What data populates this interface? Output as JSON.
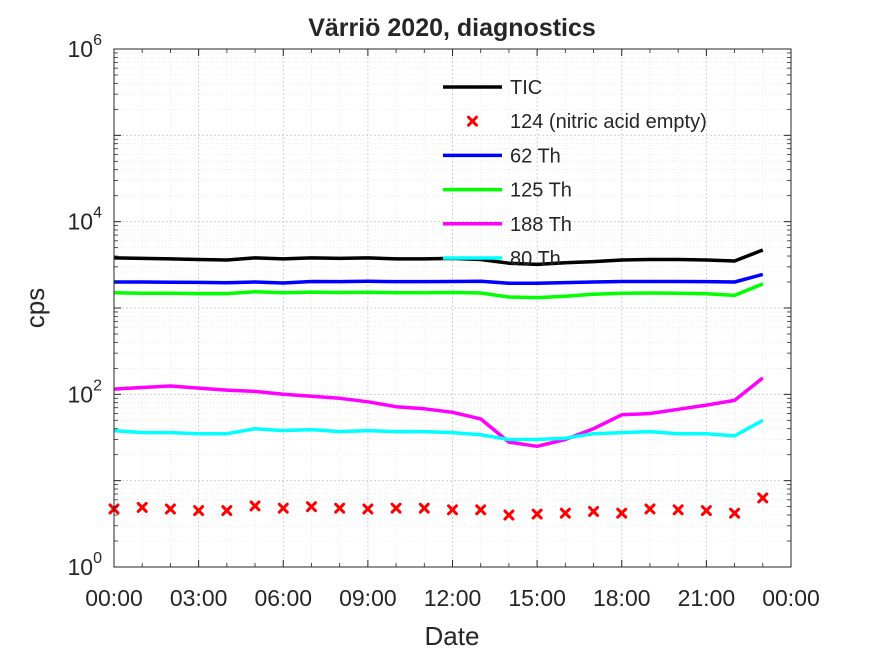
{
  "chart_data": {
    "type": "line",
    "title": "Värriö 2020, diagnostics",
    "xlabel": "Date",
    "ylabel": "cps",
    "yscale": "log",
    "ylim": [
      1,
      1000000
    ],
    "yticks": [
      {
        "value": 1,
        "base": "10",
        "exp": "0"
      },
      {
        "value": 100,
        "base": "10",
        "exp": "2"
      },
      {
        "value": 10000,
        "base": "10",
        "exp": "4"
      },
      {
        "value": 1000000,
        "base": "10",
        "exp": "6"
      }
    ],
    "xlim": [
      0,
      24
    ],
    "xticks": [
      {
        "value": 0,
        "label": "00:00"
      },
      {
        "value": 3,
        "label": "03:00"
      },
      {
        "value": 6,
        "label": "06:00"
      },
      {
        "value": 9,
        "label": "09:00"
      },
      {
        "value": 12,
        "label": "12:00"
      },
      {
        "value": 15,
        "label": "15:00"
      },
      {
        "value": 18,
        "label": "18:00"
      },
      {
        "value": 21,
        "label": "21:00"
      },
      {
        "value": 24,
        "label": "00:00"
      }
    ],
    "grid": true,
    "legend_position": "top-right",
    "x": [
      0,
      1,
      2,
      3,
      4,
      5,
      6,
      7,
      8,
      9,
      10,
      11,
      12,
      13,
      14,
      15,
      16,
      17,
      18,
      19,
      20,
      21,
      22,
      23
    ],
    "series": [
      {
        "name": "TIC",
        "style": "line",
        "color": "#000000",
        "values": [
          3800,
          3750,
          3700,
          3650,
          3600,
          3800,
          3700,
          3800,
          3750,
          3800,
          3700,
          3700,
          3750,
          3650,
          3300,
          3200,
          3350,
          3450,
          3600,
          3650,
          3650,
          3600,
          3500,
          4700
        ]
      },
      {
        "name": "124 (nitric acid empty)",
        "style": "marker",
        "color": "#ff0000",
        "values": [
          4.7,
          4.9,
          4.7,
          4.5,
          4.5,
          5.1,
          4.8,
          5.0,
          4.8,
          4.7,
          4.8,
          4.8,
          4.6,
          4.6,
          4.0,
          4.1,
          4.2,
          4.4,
          4.2,
          4.7,
          4.6,
          4.5,
          4.2,
          6.3
        ]
      },
      {
        "name": "62 Th",
        "style": "line",
        "color": "#0000ff",
        "values": [
          2000,
          2000,
          1990,
          1980,
          1960,
          2000,
          1950,
          2030,
          2020,
          2040,
          2020,
          2020,
          2030,
          2040,
          1940,
          1940,
          1970,
          2000,
          2030,
          2030,
          2030,
          2020,
          2000,
          2450
        ]
      },
      {
        "name": "125 Th",
        "style": "line",
        "color": "#00ff00",
        "values": [
          1500,
          1480,
          1480,
          1470,
          1470,
          1540,
          1500,
          1530,
          1510,
          1520,
          1500,
          1500,
          1510,
          1490,
          1340,
          1320,
          1370,
          1440,
          1480,
          1490,
          1480,
          1460,
          1400,
          1900
        ]
      },
      {
        "name": "188 Th",
        "style": "line",
        "color": "#ff00ff",
        "values": [
          115,
          120,
          125,
          118,
          112,
          108,
          100,
          95,
          90,
          82,
          72,
          68,
          62,
          52,
          28,
          25,
          30,
          40,
          58,
          60,
          67,
          75,
          85,
          155
        ]
      },
      {
        "name": "80 Th",
        "style": "line",
        "color": "#00ffff",
        "values": [
          38,
          36,
          36,
          35,
          35,
          40,
          38,
          39,
          37,
          38,
          37,
          37,
          36,
          34,
          30,
          30,
          31,
          35,
          36,
          37,
          35,
          35,
          33,
          50
        ]
      }
    ]
  }
}
